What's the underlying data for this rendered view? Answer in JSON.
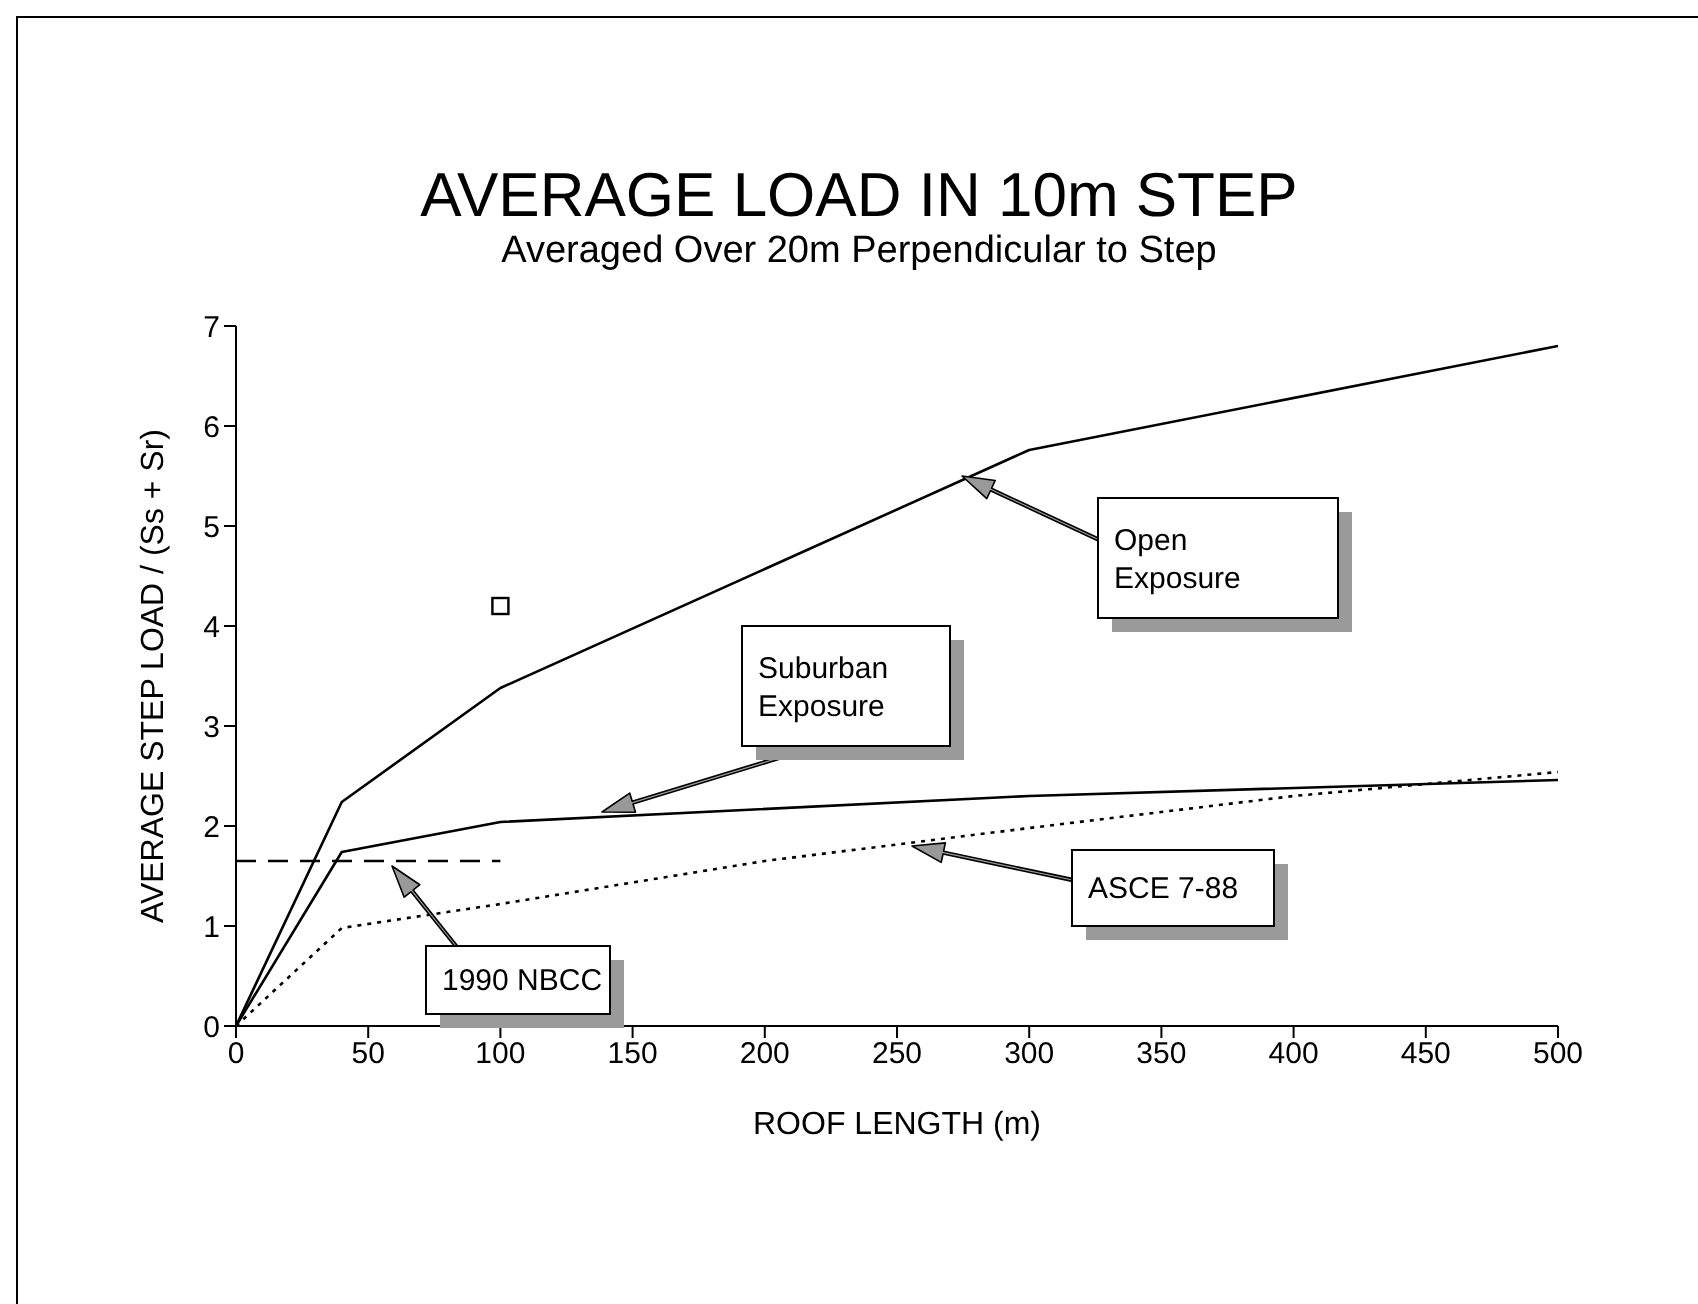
{
  "chart_data": {
    "type": "line",
    "title": "AVERAGE LOAD IN 10m STEP",
    "subtitle": "Averaged Over 20m Perpendicular to Step",
    "xlabel": "ROOF LENGTH (m)",
    "ylabel": "AVERAGE STEP LOAD / (Ss + Sr)",
    "xlim": [
      0,
      500
    ],
    "xticks": [
      0,
      50,
      100,
      150,
      200,
      250,
      300,
      350,
      400,
      450,
      500
    ],
    "ylim": [
      0,
      7
    ],
    "yticks": [
      0,
      1,
      2,
      3,
      4,
      5,
      6,
      7
    ],
    "grid": false,
    "series": [
      {
        "name": "Open Exposure",
        "color": "#000000",
        "line_style": "solid",
        "marker": "none",
        "x": [
          0,
          40,
          100,
          300,
          500
        ],
        "values": [
          0,
          2.24,
          3.38,
          5.76,
          6.8
        ]
      },
      {
        "name": "Suburban Exposure",
        "color": "#000000",
        "line_style": "solid",
        "marker": "none",
        "x": [
          0,
          40,
          100,
          300,
          500
        ],
        "values": [
          0,
          1.74,
          2.04,
          2.3,
          2.46
        ]
      },
      {
        "name": "ASCE 7-88",
        "color": "#000000",
        "line_style": "dotted",
        "marker": "none",
        "x": [
          0,
          40,
          100,
          200,
          300,
          400,
          500
        ],
        "values": [
          0,
          0.98,
          1.22,
          1.65,
          1.98,
          2.3,
          2.54
        ]
      },
      {
        "name": "1990 NBCC",
        "color": "#000000",
        "line_style": "dashed",
        "marker": "none",
        "x": [
          0,
          100
        ],
        "values": [
          1.65,
          1.65
        ]
      },
      {
        "type": "scatter",
        "color": "#000000",
        "marker": "square",
        "x": [
          100
        ],
        "values": [
          4.2
        ]
      }
    ]
  }
}
